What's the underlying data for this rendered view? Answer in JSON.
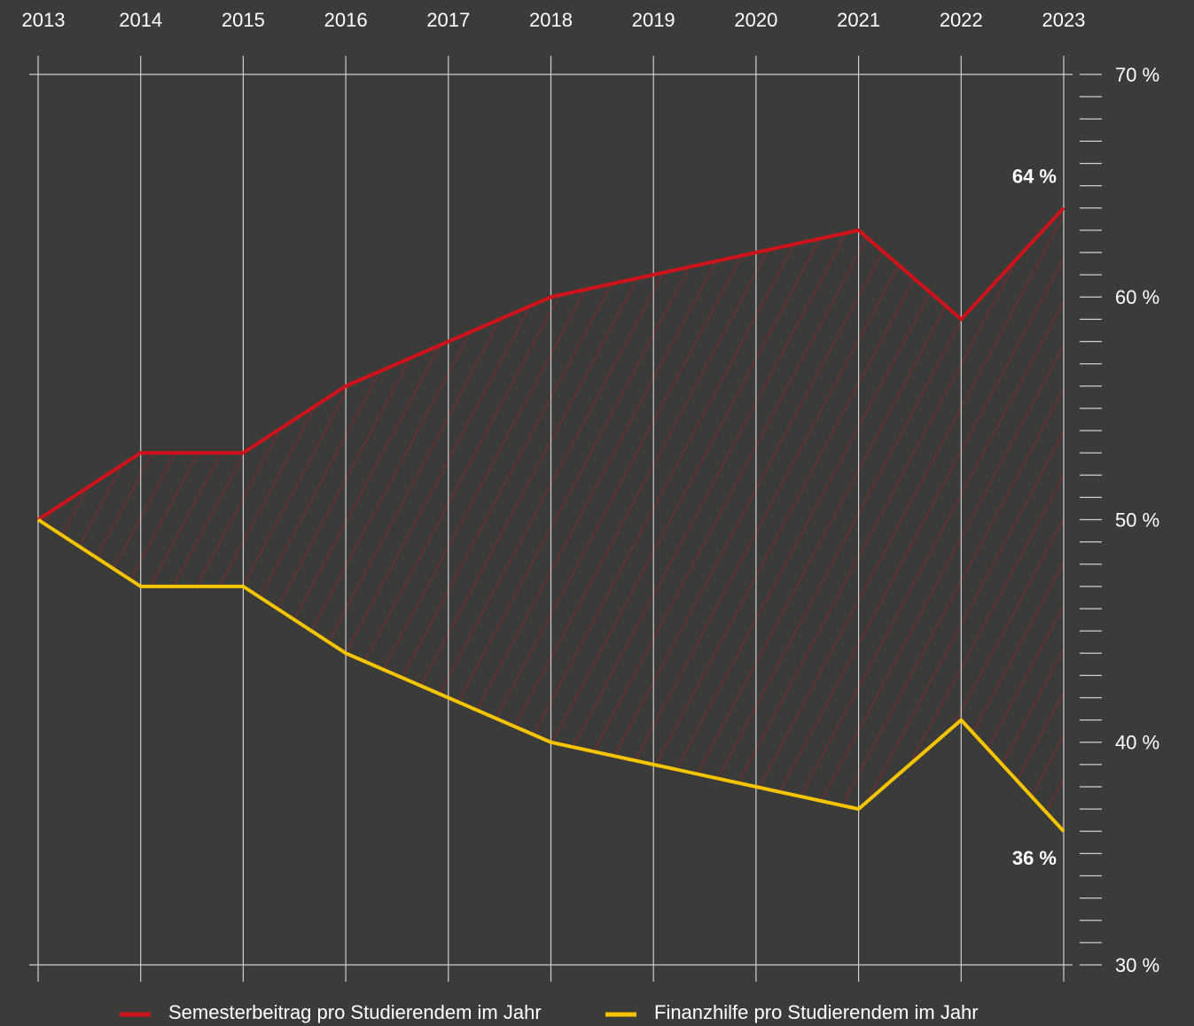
{
  "chart_data": {
    "type": "line",
    "x": [
      "2013",
      "2014",
      "2015",
      "2016",
      "2017",
      "2018",
      "2019",
      "2020",
      "2021",
      "2022",
      "2023"
    ],
    "series": [
      {
        "name": "Semesterbeitrag pro Studierendem im Jahr",
        "color": "#d0121b",
        "values": [
          50,
          53,
          53,
          56,
          58,
          60,
          61,
          62,
          63,
          59,
          64
        ],
        "value_labels": [
          null,
          null,
          null,
          null,
          null,
          null,
          null,
          null,
          null,
          null,
          "64 %"
        ]
      },
      {
        "name": "Finanzhilfe pro Studierendem im Jahr",
        "color": "#f5c400",
        "values": [
          50,
          47,
          47,
          44,
          42,
          40,
          39,
          38,
          37,
          41,
          36
        ],
        "value_labels": [
          null,
          null,
          null,
          null,
          null,
          null,
          null,
          null,
          null,
          null,
          "36 %"
        ]
      }
    ],
    "ylim": [
      30,
      70
    ],
    "yticks": [
      {
        "value": 30,
        "label": "30 %"
      },
      {
        "value": 40,
        "label": "40 %"
      },
      {
        "value": 50,
        "label": "50 %"
      },
      {
        "value": 60,
        "label": "60 %"
      },
      {
        "value": 70,
        "label": "70 %"
      }
    ],
    "grid": true,
    "legend": "bottom"
  }
}
